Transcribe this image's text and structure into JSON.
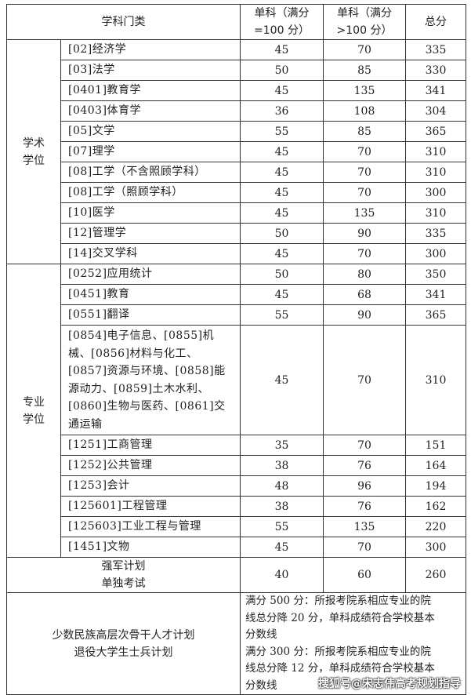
{
  "header": {
    "category": "学科门类",
    "single_100": "单科（满分=100 分）",
    "single_gt100": "单科（满分>100 分）",
    "total": "总分"
  },
  "academic": {
    "label": "学术学位",
    "rows": [
      {
        "name": "[02]经济学",
        "a": "45",
        "b": "70",
        "t": "335"
      },
      {
        "name": "[03]法学",
        "a": "50",
        "b": "85",
        "t": "330"
      },
      {
        "name": "[0401]教育学",
        "a": "45",
        "b": "135",
        "t": "341"
      },
      {
        "name": "[0403]体育学",
        "a": "36",
        "b": "108",
        "t": "304"
      },
      {
        "name": "[05]文学",
        "a": "55",
        "b": "85",
        "t": "365"
      },
      {
        "name": "[07]理学",
        "a": "45",
        "b": "70",
        "t": "310"
      },
      {
        "name": "[08]工学（不含照顾学科）",
        "a": "45",
        "b": "70",
        "t": "310"
      },
      {
        "name": "[08]工学（照顾学科）",
        "a": "45",
        "b": "70",
        "t": "300"
      },
      {
        "name": "[10]医学",
        "a": "45",
        "b": "135",
        "t": "310"
      },
      {
        "name": "[12]管理学",
        "a": "50",
        "b": "90",
        "t": "335"
      },
      {
        "name": "[14]交叉学科",
        "a": "45",
        "b": "70",
        "t": "300"
      }
    ]
  },
  "professional": {
    "label": "专业学位",
    "rows": [
      {
        "name": "[0252]应用统计",
        "a": "50",
        "b": "80",
        "t": "350"
      },
      {
        "name": "[0451]教育",
        "a": "45",
        "b": "68",
        "t": "341"
      },
      {
        "name": "[0551]翻译",
        "a": "55",
        "b": "90",
        "t": "365"
      },
      {
        "name": "[0854]电子信息、[0855]机械、[0856]材料与化工、[0857]资源与环境、[0858]能源动力、[0859]土木水利、[0860]生物与医药、[0861]交通运输",
        "a": "45",
        "b": "70",
        "t": "310"
      },
      {
        "name": "[1251]工商管理",
        "a": "35",
        "b": "70",
        "t": "151"
      },
      {
        "name": "[1252]公共管理",
        "a": "38",
        "b": "76",
        "t": "164"
      },
      {
        "name": "[1253]会计",
        "a": "48",
        "b": "96",
        "t": "194"
      },
      {
        "name": "[125601]工程管理",
        "a": "38",
        "b": "76",
        "t": "162"
      },
      {
        "name": "[125603]工业工程与管理",
        "a": "55",
        "b": "135",
        "t": "220"
      },
      {
        "name": "[1451]文物",
        "a": "45",
        "b": "70",
        "t": "300"
      }
    ]
  },
  "special": {
    "label": "强军计划单独考试",
    "a": "40",
    "b": "60",
    "t": "260"
  },
  "minority": {
    "label": "少数民族高层次骨干人才计划退役大学生士兵计划",
    "note": "满分 500 分：所报考院系相应专业的院线总分降 20 分，单科成绩符合学校基本分数线满分 300 分：所报考院系相应专业的院线总分降 12 分，单科成绩符合学校基本分数线"
  },
  "watermark": "搜狐号@宋志伟高考规划指导"
}
